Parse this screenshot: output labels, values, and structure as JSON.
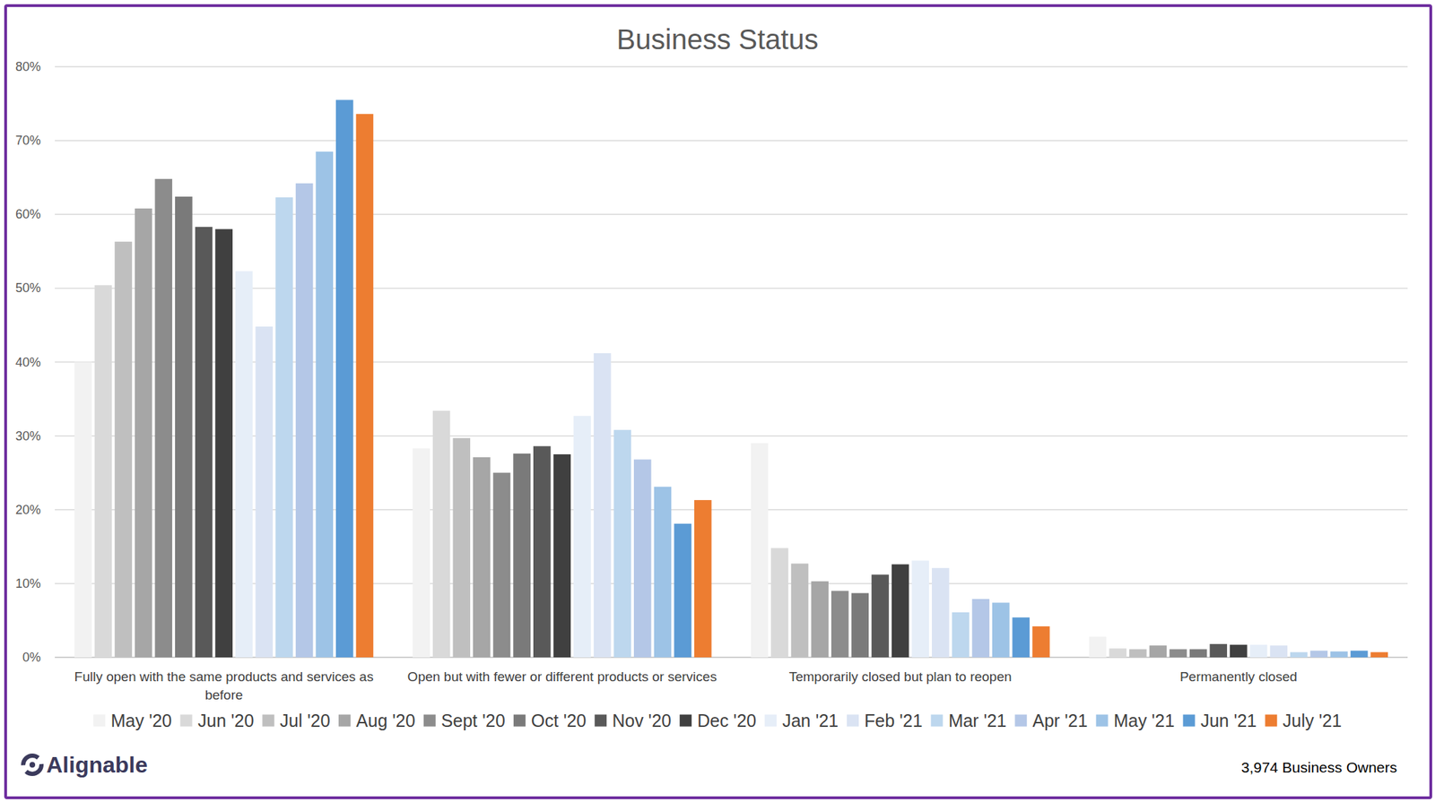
{
  "chart_data": {
    "type": "bar",
    "title": "Business Status",
    "logo": "Alignable",
    "note": "3,974 Business Owners",
    "categories": [
      "Fully open with the same products and services as before",
      "Open but with fewer or different products or services",
      "Temporarily closed but plan to reopen",
      "Permanently closed"
    ],
    "ylim": [
      0,
      80
    ],
    "yticks": [
      {
        "value": 0,
        "label": "0%"
      },
      {
        "value": 10,
        "label": "10%"
      },
      {
        "value": 20,
        "label": "20%"
      },
      {
        "value": 30,
        "label": "30%"
      },
      {
        "value": 40,
        "label": "40%"
      },
      {
        "value": 50,
        "label": "50%"
      },
      {
        "value": 60,
        "label": "60%"
      },
      {
        "value": 70,
        "label": "70%"
      },
      {
        "value": 80,
        "label": "80%"
      }
    ],
    "grid": true,
    "legend": "bottom",
    "series": [
      {
        "name": "May '20",
        "color": "#f2f2f2",
        "values": [
          40.0,
          28.3,
          29.0,
          2.8
        ]
      },
      {
        "name": "Jun '20",
        "color": "#d9d9d9",
        "values": [
          50.4,
          33.4,
          14.8,
          1.2
        ]
      },
      {
        "name": "Jul '20",
        "color": "#bfbfbf",
        "values": [
          56.3,
          29.7,
          12.7,
          1.1
        ]
      },
      {
        "name": "Aug '20",
        "color": "#a6a6a6",
        "values": [
          60.8,
          27.1,
          10.3,
          1.6
        ]
      },
      {
        "name": "Sept '20",
        "color": "#8c8c8c",
        "values": [
          64.8,
          25.0,
          9.0,
          1.1
        ]
      },
      {
        "name": "Oct '20",
        "color": "#7a7a7a",
        "values": [
          62.4,
          27.6,
          8.7,
          1.1
        ]
      },
      {
        "name": "Nov '20",
        "color": "#595959",
        "values": [
          58.3,
          28.6,
          11.2,
          1.8
        ]
      },
      {
        "name": "Dec '20",
        "color": "#404040",
        "values": [
          58.0,
          27.5,
          12.6,
          1.7
        ]
      },
      {
        "name": "Jan '21",
        "color": "#e6eef8",
        "values": [
          52.3,
          32.7,
          13.1,
          1.7
        ]
      },
      {
        "name": "Feb '21",
        "color": "#dae3f3",
        "values": [
          44.8,
          41.2,
          12.1,
          1.6
        ]
      },
      {
        "name": "Mar '21",
        "color": "#bdd7ee",
        "values": [
          62.3,
          30.8,
          6.1,
          0.7
        ]
      },
      {
        "name": "Apr '21",
        "color": "#b4c7e7",
        "values": [
          64.2,
          26.8,
          7.9,
          0.9
        ]
      },
      {
        "name": "May '21",
        "color": "#9dc3e6",
        "values": [
          68.5,
          23.1,
          7.4,
          0.8
        ]
      },
      {
        "name": "Jun '21",
        "color": "#5b9bd5",
        "values": [
          75.5,
          18.1,
          5.4,
          0.9
        ]
      },
      {
        "name": "July '21",
        "color": "#ed7d31",
        "values": [
          73.6,
          21.3,
          4.2,
          0.7
        ]
      }
    ]
  }
}
